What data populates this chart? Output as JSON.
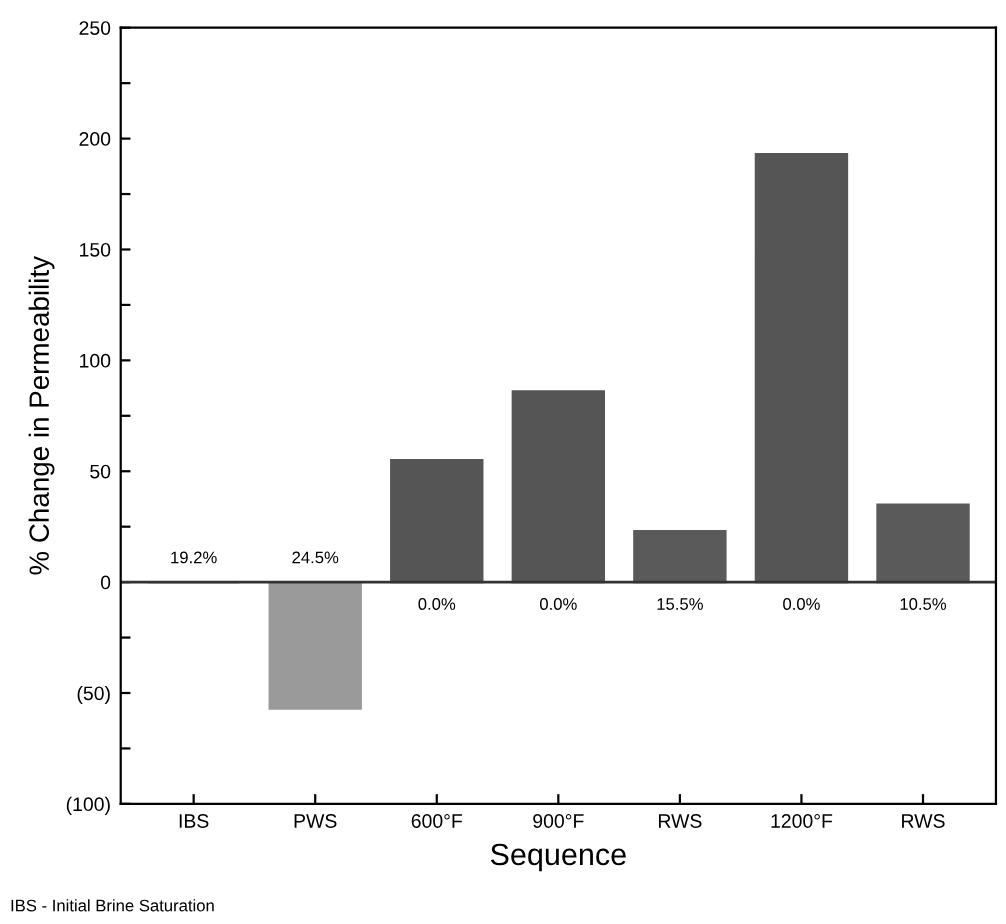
{
  "chart_data": {
    "type": "bar",
    "xlabel": "Sequence",
    "ylabel": "% Change in Permeability",
    "categories": [
      "IBS",
      "PWS",
      "600°F",
      "900°F",
      "RWS",
      "1200°F",
      "RWS"
    ],
    "values": [
      0,
      -57,
      55,
      86,
      23,
      193,
      35
    ],
    "colors": [
      "#555555",
      "#9a9a9a",
      "#555555",
      "#555555",
      "#5a5a5a",
      "#555555",
      "#5a5a5a"
    ],
    "ylim": [
      -100,
      250
    ],
    "yticks": [
      {
        "value": -100,
        "label": "(100)"
      },
      {
        "value": -75,
        "label": null
      },
      {
        "value": -50,
        "label": "(50)"
      },
      {
        "value": -25,
        "label": null
      },
      0,
      {
        "value": 25,
        "label": null
      },
      50,
      {
        "value": 75,
        "label": null
      },
      100,
      {
        "value": 125,
        "label": null
      },
      150,
      {
        "value": 175,
        "label": null
      },
      200,
      {
        "value": 225,
        "label": null
      },
      250
    ],
    "annotations": [
      "19.2%",
      "24.5%",
      "0.0%",
      "0.0%",
      "15.5%",
      "0.0%",
      "10.5%",
      "IBS - Initial Brine Saturation"
    ],
    "ref_lines": [
      {
        "axis": "y",
        "value": 0,
        "color": "#333333"
      }
    ],
    "grid": false
  }
}
